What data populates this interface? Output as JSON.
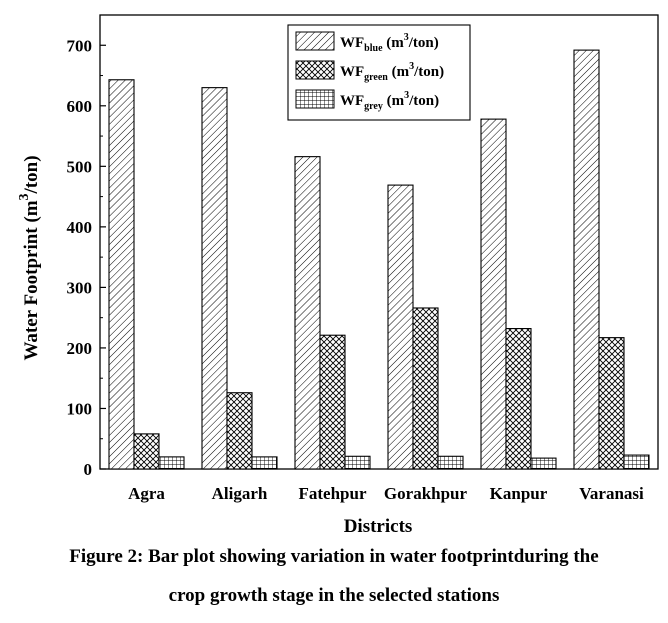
{
  "chart_data": {
    "type": "bar",
    "title": "",
    "xlabel": "Districts",
    "ylabel": {
      "main": "Water Footprint (m",
      "sup": "3",
      "tail": "/ton)"
    },
    "categories": [
      "Agra",
      "Aligarh",
      "Fatehpur",
      "Gorakhpur",
      "Kanpur",
      "Varanasi"
    ],
    "ylim": [
      0,
      750
    ],
    "yticks": [
      0,
      100,
      200,
      300,
      400,
      500,
      600,
      700
    ],
    "series": [
      {
        "name": "WF blue (m3/ton)",
        "label_main": "WF",
        "label_sub": "blue",
        "label_unit": " (m",
        "label_sup": "3",
        "label_tail": "/ton)",
        "pattern": "diag",
        "values": [
          643,
          630,
          516,
          469,
          578,
          692
        ]
      },
      {
        "name": "WF green (m3/ton)",
        "label_main": "WF",
        "label_sub": "green",
        "label_unit": " (m",
        "label_sup": "3",
        "label_tail": "/ton)",
        "pattern": "cross",
        "values": [
          58,
          126,
          221,
          266,
          232,
          217
        ]
      },
      {
        "name": "WF grey (m3/ton)",
        "label_main": "WF",
        "label_sub": "grey",
        "label_unit": " (m",
        "label_sup": "3",
        "label_tail": "/ton)",
        "pattern": "grid",
        "values": [
          20,
          20,
          21,
          21,
          18,
          23
        ]
      }
    ],
    "legend_position": "top-center",
    "grid": false
  },
  "caption": {
    "line1": "Figure 2: Bar plot showing variation in water footprintduring the",
    "line2": "crop growth stage in the selected stations"
  }
}
